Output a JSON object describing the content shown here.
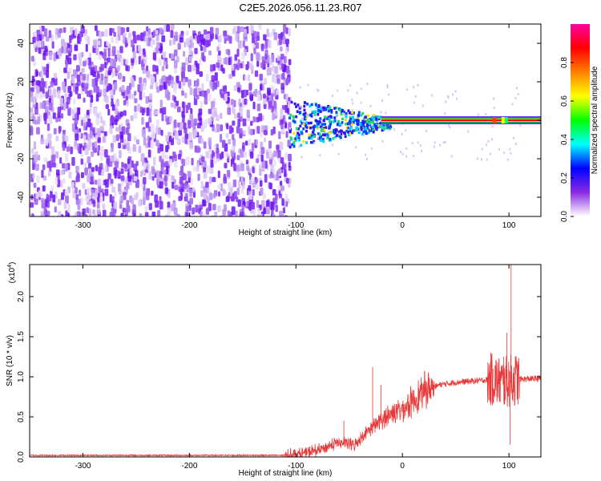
{
  "chart_data": [
    {
      "type": "heatmap",
      "title": "C2E5.2026.056.11.23.R07",
      "xlabel": "Height of straight line (km)",
      "ylabel": "Frequency (Hz)",
      "xlim": [
        -350,
        130
      ],
      "ylim": [
        -50,
        50
      ],
      "xticks": [
        -300,
        -200,
        -100,
        0,
        100
      ],
      "xtick_labels": [
        "-300",
        "-200",
        "-100",
        "0",
        "100"
      ],
      "yticks": [
        -40,
        -20,
        0,
        20,
        40
      ],
      "ytick_labels": [
        "-40",
        "-20",
        "0",
        "20",
        "40"
      ],
      "noise_region_x": [
        -350,
        -107
      ],
      "signal_start_x": -107,
      "signal_line_freq": 0,
      "grid": false,
      "colorbar": {
        "label": "Normalized spectral amplitude",
        "range": [
          0,
          1
        ],
        "ticks": [
          0,
          0.2,
          0.4,
          0.6,
          0.8
        ],
        "tick_labels": [
          "0.0",
          "0.2",
          "0.4",
          "0.6",
          "0.8"
        ],
        "colors": [
          "#ffffff",
          "#8a2be2",
          "#0000ff",
          "#00ffff",
          "#00ff00",
          "#ffff00",
          "#ff8000",
          "#ff0000",
          "#ff00a0"
        ]
      }
    },
    {
      "type": "line",
      "xlabel": "Height of straight line (km)",
      "ylabel": "SNR (10 * v/v)",
      "y_exponent_label": "(x10",
      "y_exponent_sup": "4",
      "y_exponent_close": ")",
      "xlim": [
        -350,
        130
      ],
      "ylim": [
        0,
        2.4
      ],
      "xticks": [
        -300,
        -200,
        -100,
        0,
        100
      ],
      "xtick_labels": [
        "-300",
        "-200",
        "-100",
        "0",
        "100"
      ],
      "yticks": [
        0,
        0.5,
        1.0,
        1.5,
        2.0
      ],
      "ytick_labels": [
        "0.0",
        "0.5",
        "1.0",
        "1.5",
        "2.0"
      ],
      "grid": false,
      "line_color": "#e83a3a",
      "series_trend": {
        "x": [
          -350,
          -110,
          -95,
          -80,
          -60,
          -45,
          -35,
          -25,
          -10,
          0,
          10,
          20,
          35,
          50,
          70,
          85,
          95,
          100,
          110,
          130
        ],
        "y": [
          0.02,
          0.02,
          0.04,
          0.08,
          0.18,
          0.15,
          0.3,
          0.4,
          0.55,
          0.6,
          0.7,
          0.82,
          0.9,
          0.93,
          0.95,
          0.97,
          0.92,
          0.95,
          0.97,
          0.98
        ]
      },
      "spikes": [
        {
          "x": -55,
          "y": 0.45
        },
        {
          "x": -28,
          "y": 1.12
        },
        {
          "x": -20,
          "y": 0.9
        },
        {
          "x": 85,
          "y": 1.1
        },
        {
          "x": 95,
          "y": 1.25
        },
        {
          "x": 98,
          "y": 1.55
        },
        {
          "x": 102,
          "y": 2.4
        },
        {
          "x": 101,
          "y": 0.15
        }
      ]
    }
  ]
}
